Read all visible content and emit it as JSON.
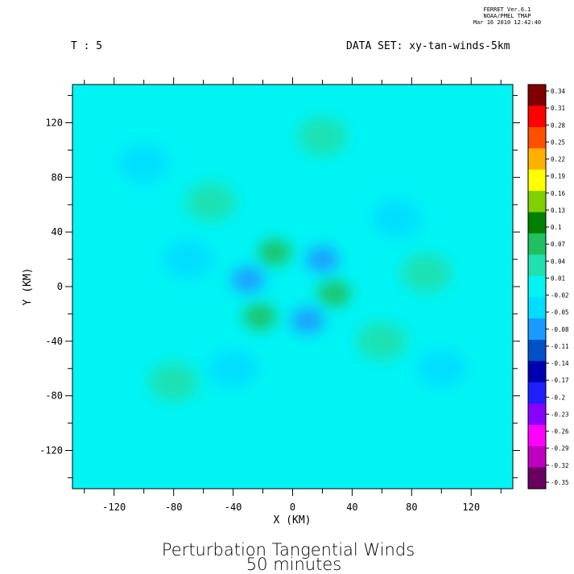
{
  "header": {
    "ferret_line1": "FERRET  Ver.6.1",
    "ferret_line2": "NOAA/PMEL TMAP",
    "ferret_line3": "Mar 16 2010 12:42:40",
    "time_label": "T : 5",
    "dataset_label": "DATA SET: xy-tan-winds-5km"
  },
  "titles": {
    "line1": "Perturbation Tangential Winds",
    "line2": "50 minutes"
  },
  "colors": {
    "background_field": "#00f4f4",
    "colormap": [
      "#6a0060",
      "#c000c0",
      "#ff00ff",
      "#8800ff",
      "#2020ff",
      "#0000b0",
      "#0050c8",
      "#1a9aff",
      "#00ddff",
      "#00f4f4",
      "#20e0b0",
      "#20c060",
      "#008000",
      "#80d000",
      "#ffff00",
      "#ffb000",
      "#ff5000",
      "#ff0000",
      "#800000"
    ]
  },
  "chart_data": {
    "type": "heatmap",
    "title": "Perturbation Tangential Winds",
    "subtitle": "50 minutes",
    "xlabel": "X (KM)",
    "ylabel": "Y (KM)",
    "xlim": [
      -148,
      148
    ],
    "ylim": [
      -148,
      148
    ],
    "x_ticks": [
      -120,
      -80,
      -40,
      0,
      40,
      80,
      120
    ],
    "y_ticks": [
      -120,
      -80,
      -40,
      0,
      40,
      80,
      120
    ],
    "x_tick_labels": [
      "-120",
      "-80",
      "-40",
      "0",
      "40",
      "80",
      "120"
    ],
    "y_tick_labels": [
      "-120",
      "-80",
      "-40",
      "0",
      "40",
      "80",
      "120"
    ],
    "colorbar": {
      "levels": [
        0.34,
        0.31,
        0.28,
        0.25,
        0.22,
        0.19,
        0.16,
        0.13,
        0.1,
        0.07,
        0.04,
        0.01,
        -0.02,
        -0.05,
        -0.08,
        -0.11,
        -0.14,
        -0.17,
        -0.2,
        -0.23,
        -0.26,
        -0.29,
        -0.32,
        -0.35
      ],
      "labels": [
        "0.34",
        "0.31",
        "0.28",
        "0.25",
        "0.22",
        "0.19",
        "0.16",
        "0.13",
        "0.1",
        "0.07",
        "0.04",
        "0.01",
        "-0.02",
        "-0.05",
        "-0.08",
        "-0.11",
        "-0.14",
        "-0.17",
        "-0.2",
        "-0.23",
        "-0.26",
        "-0.29",
        "-0.32",
        "-0.35"
      ],
      "min": -0.35,
      "max": 0.34
    },
    "features": [
      {
        "kind": "min",
        "x": -30,
        "y": 5,
        "value": -0.09
      },
      {
        "kind": "min",
        "x": 20,
        "y": 20,
        "value": -0.08
      },
      {
        "kind": "min",
        "x": 10,
        "y": -25,
        "value": -0.08
      },
      {
        "kind": "max",
        "x": -12,
        "y": 25,
        "value": 0.06
      },
      {
        "kind": "max",
        "x": 28,
        "y": -5,
        "value": 0.06
      },
      {
        "kind": "max",
        "x": -22,
        "y": -22,
        "value": 0.06
      },
      {
        "kind": "max",
        "x": -55,
        "y": 62,
        "value": 0.04
      },
      {
        "kind": "max",
        "x": 90,
        "y": 10,
        "value": 0.04
      },
      {
        "kind": "max",
        "x": 60,
        "y": -40,
        "value": 0.04
      },
      {
        "kind": "max",
        "x": -80,
        "y": -70,
        "value": 0.035
      },
      {
        "kind": "max",
        "x": 20,
        "y": 110,
        "value": 0.035
      },
      {
        "kind": "min",
        "x": -70,
        "y": 20,
        "value": -0.04
      },
      {
        "kind": "min",
        "x": 70,
        "y": 50,
        "value": -0.04
      },
      {
        "kind": "min",
        "x": -40,
        "y": -60,
        "value": -0.04
      },
      {
        "kind": "min",
        "x": 100,
        "y": -60,
        "value": -0.035
      },
      {
        "kind": "min",
        "x": -100,
        "y": 90,
        "value": -0.035
      }
    ]
  }
}
